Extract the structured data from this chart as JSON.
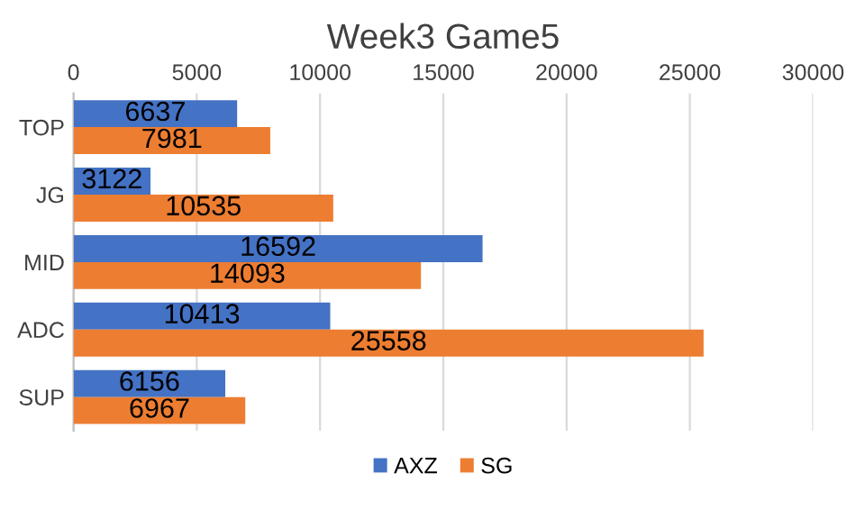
{
  "chart_data": {
    "type": "bar",
    "orientation": "horizontal",
    "title": "Week3 Game5",
    "categories": [
      "TOP",
      "JG",
      "MID",
      "ADC",
      "SUP"
    ],
    "series": [
      {
        "name": "AXZ",
        "color": "#4472c4",
        "values": [
          6637,
          3122,
          16592,
          10413,
          6156
        ]
      },
      {
        "name": "SG",
        "color": "#ed7d31",
        "values": [
          7981,
          10535,
          14093,
          25558,
          6967
        ]
      }
    ],
    "xlim": [
      0,
      30000
    ],
    "xticks": [
      0,
      5000,
      10000,
      15000,
      20000,
      25000,
      30000
    ],
    "grid": "x",
    "legend": "bottom",
    "data_labels": true
  }
}
